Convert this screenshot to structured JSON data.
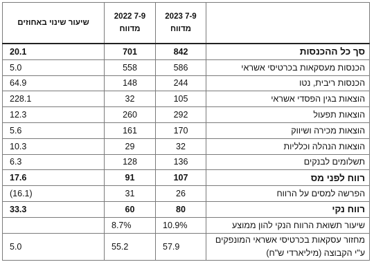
{
  "table": {
    "headers": {
      "label": "",
      "y2023_line1": "7-9 2023",
      "y2023_line2": "מדווח",
      "y2022_line1": "7-9 2022",
      "y2022_line2": "מדווח",
      "change": "שיעור שינוי באחוזים"
    },
    "rows": [
      {
        "label": "סך כל ההכנסות",
        "v2023": "842",
        "v2022": "701",
        "change": "20.1"
      },
      {
        "label": "הכנסות מעסקאות בכרטיסי אשראי",
        "v2023": "586",
        "v2022": "558",
        "change": "5.0"
      },
      {
        "label": "הכנסות ריבית, נטו",
        "v2023": "244",
        "v2022": "148",
        "change": "64.9"
      },
      {
        "label": "הוצאות בגין הפסדי אשראי",
        "v2023": "105",
        "v2022": "32",
        "change": "228.1"
      },
      {
        "label": "הוצאות תפעול",
        "v2023": "292",
        "v2022": "260",
        "change": "12.3"
      },
      {
        "label": "הוצאות מכירה ושיווק",
        "v2023": "170",
        "v2022": "161",
        "change": "5.6"
      },
      {
        "label": "הוצאות הנהלה וכלליות",
        "v2023": "32",
        "v2022": "29",
        "change": "10.3"
      },
      {
        "label": "תשלומים לבנקים",
        "v2023": "136",
        "v2022": "128",
        "change": "6.3"
      },
      {
        "label": "רווח לפני מס",
        "v2023": "107",
        "v2022": "91",
        "change": "17.6"
      },
      {
        "label": "הפרשה למסים על הרווח",
        "v2023": "26",
        "v2022": "31",
        "change": "(16.1)"
      },
      {
        "label": "רווח נקי",
        "v2023": "80",
        "v2022": "60",
        "change": "33.3"
      },
      {
        "label": "שיעור תשואת הרווח הנקי להון ממוצע",
        "v2023": "10.9%",
        "v2022": "8.7%",
        "change": ""
      },
      {
        "label": "מחזור עסקאות בכרטיסי אשראי המונפקים ע\"י הקבוצה (מיליארדי ש\"ח)",
        "v2023": "57.9",
        "v2022": "55.2",
        "change": "5.0"
      }
    ]
  }
}
